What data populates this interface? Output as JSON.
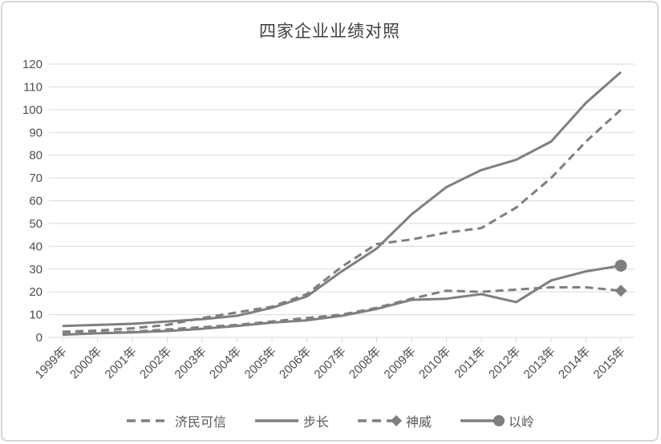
{
  "chart_data": {
    "type": "line",
    "title": "四家企业业绩对照",
    "categories": [
      "1999年",
      "2000年",
      "2001年",
      "2002年",
      "2003年",
      "2004年",
      "2005年",
      "2006年",
      "2007年",
      "2008年",
      "2009年",
      "2010年",
      "2011年",
      "2012年",
      "2013年",
      "2014年",
      "2015年"
    ],
    "y_ticks": [
      0,
      10,
      20,
      30,
      40,
      50,
      60,
      70,
      80,
      90,
      100,
      110,
      120
    ],
    "ylim": [
      0,
      120
    ],
    "grid": true,
    "legend_position": "bottom",
    "line_color": "#7f7f7f",
    "grid_color": "#d9d9d9",
    "label_color": "#4d4d4d",
    "series": [
      {
        "name": "济民可信",
        "style": "dashed",
        "marker": "none",
        "values": [
          2.5,
          3,
          4,
          5.5,
          8.5,
          11,
          13.5,
          19,
          31,
          41,
          43,
          46,
          48,
          57,
          70,
          86,
          100
        ]
      },
      {
        "name": "步长",
        "style": "solid",
        "marker": "none",
        "values": [
          5,
          5.5,
          6,
          7,
          8,
          9.5,
          13,
          18,
          29,
          39,
          54,
          66,
          73.5,
          78,
          86,
          103,
          116.5
        ]
      },
      {
        "name": "神威",
        "style": "dashed",
        "marker": "diamond",
        "values": [
          1.5,
          2,
          2.5,
          3.5,
          4.5,
          5.5,
          7,
          8.5,
          10,
          13,
          17,
          20.5,
          20,
          21,
          22,
          22,
          20.5
        ]
      },
      {
        "name": "以岭",
        "style": "solid",
        "marker": "circle",
        "values": [
          1.2,
          1.8,
          2.2,
          2.8,
          3.8,
          5,
          6.5,
          7.5,
          9.5,
          12.5,
          16.5,
          17,
          19,
          15.5,
          25,
          29,
          31.5
        ]
      }
    ]
  }
}
